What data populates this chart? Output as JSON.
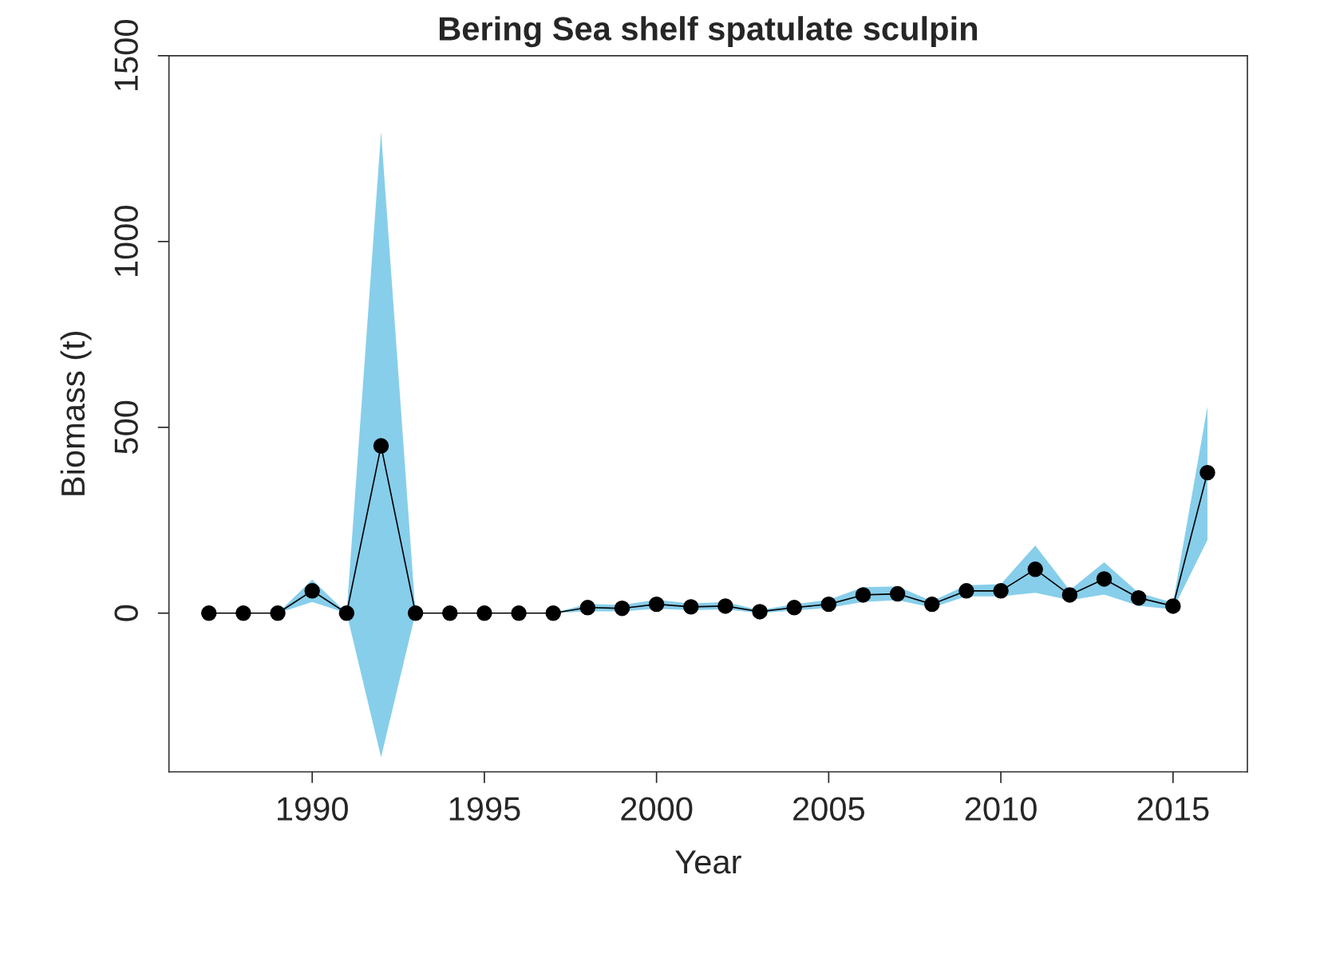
{
  "chart_data": {
    "type": "line",
    "title": "Bering Sea shelf spatulate sculpin",
    "xlabel": "Year",
    "ylabel": "Biomass (t)",
    "x": [
      1987,
      1988,
      1989,
      1990,
      1991,
      1992,
      1993,
      1994,
      1995,
      1996,
      1997,
      1998,
      1999,
      2000,
      2001,
      2002,
      2003,
      2004,
      2005,
      2006,
      2007,
      2008,
      2009,
      2010,
      2011,
      2012,
      2013,
      2014,
      2015,
      2016
    ],
    "series": [
      {
        "color": "#000000",
        "values": [
          0,
          0,
          0,
          60,
          0,
          450,
          0,
          0,
          0,
          0,
          0,
          15,
          13,
          24,
          17,
          19,
          4,
          15,
          24,
          49,
          52,
          24,
          60,
          60,
          118,
          49,
          92,
          41,
          19,
          378
        ],
        "lower": [
          0,
          0,
          0,
          30,
          0,
          -388,
          0,
          0,
          0,
          0,
          0,
          5,
          5,
          12,
          8,
          10,
          0,
          7,
          14,
          30,
          35,
          15,
          45,
          45,
          55,
          35,
          50,
          20,
          10,
          197
        ],
        "upper": [
          0,
          0,
          0,
          90,
          0,
          1296,
          0,
          0,
          0,
          0,
          0,
          25,
          22,
          36,
          26,
          30,
          8,
          24,
          36,
          70,
          72,
          32,
          75,
          78,
          182,
          62,
          137,
          55,
          28,
          556
        ]
      }
    ],
    "xlim": [
      1985.84,
      2017.16
    ],
    "ylim": [
      -427,
      1500
    ],
    "xticks": [
      1990,
      1995,
      2000,
      2005,
      2010,
      2015
    ],
    "yticks": [
      0,
      500,
      1000,
      1500
    ],
    "marker": "circle",
    "line_style": "solid",
    "grid": false,
    "legend": false
  }
}
